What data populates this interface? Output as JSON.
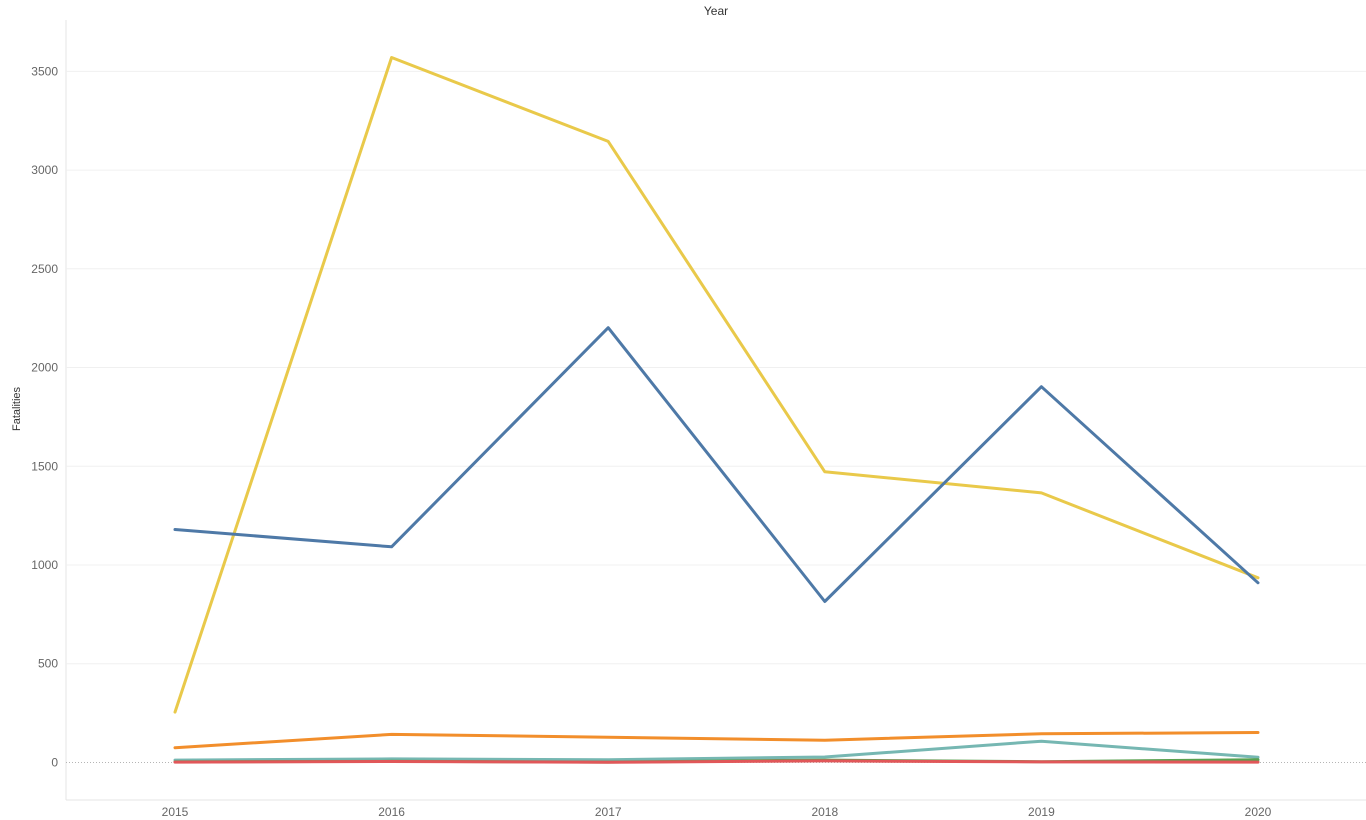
{
  "chart_data": {
    "type": "line",
    "column_title": "Year",
    "ylabel": "Fatalities",
    "x": [
      "2015",
      "2016",
      "2017",
      "2018",
      "2019",
      "2020"
    ],
    "ylim": [
      -190,
      3760
    ],
    "yticks": [
      0,
      500,
      1000,
      1500,
      2000,
      2500,
      3000,
      3500
    ],
    "grid": true,
    "legend": "none",
    "series": [
      {
        "color": "#e9c94a",
        "values": [
          255,
          3570,
          3145,
          1472,
          1365,
          935
        ]
      },
      {
        "color": "#4e79a7",
        "values": [
          1180,
          1092,
          2202,
          815,
          1903,
          910
        ]
      },
      {
        "color": "#f28e2b",
        "values": [
          75,
          142,
          128,
          113,
          145,
          152
        ]
      },
      {
        "color": "#76b7b2",
        "values": [
          12,
          18,
          14,
          28,
          108,
          26
        ]
      },
      {
        "color": "#59a14f",
        "values": [
          3,
          6,
          2,
          12,
          4,
          14
        ]
      },
      {
        "color": "#e15759",
        "values": [
          2,
          5,
          1,
          8,
          3,
          2
        ]
      }
    ]
  }
}
